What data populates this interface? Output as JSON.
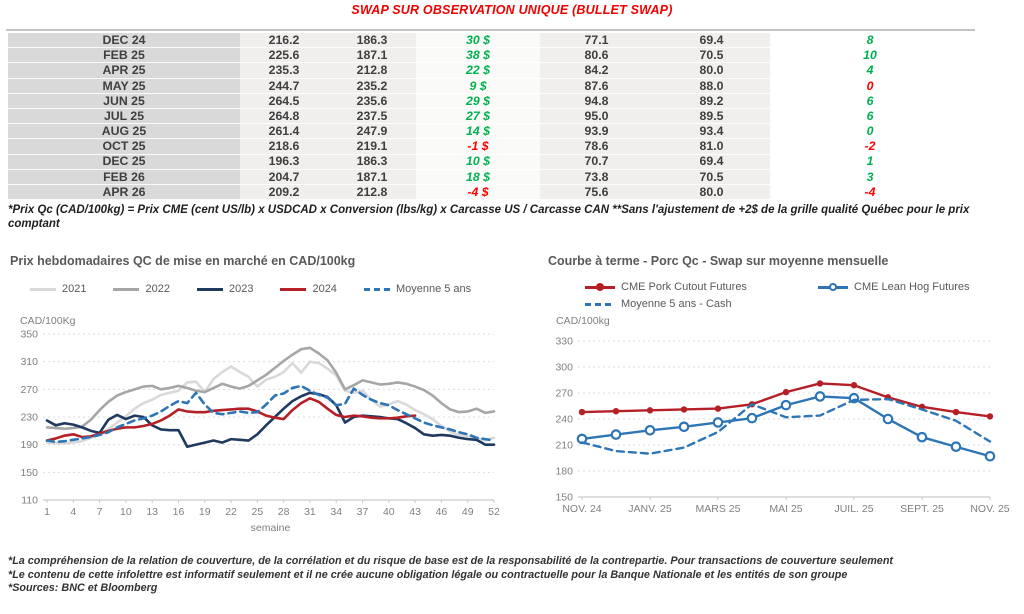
{
  "header": {
    "title": "SWAP SUR OBSERVATION UNIQUE (BULLET SWAP)"
  },
  "colors": {
    "positive": "#00B050",
    "negative": "#FF0000",
    "title_red": "#F00000",
    "label_col_bg": "#D9D9D9",
    "value_col_bg": "#F0EFED"
  },
  "table": {
    "rows": [
      {
        "month": "DEC 24",
        "v1": "216.2",
        "v2": "186.3",
        "diff": "30 $",
        "diff_color": "pos",
        "v3": "77.1",
        "v4": "69.4",
        "delta": "8",
        "delta_color": "pos"
      },
      {
        "month": "FEB 25",
        "v1": "225.6",
        "v2": "187.1",
        "diff": "38 $",
        "diff_color": "pos",
        "v3": "80.6",
        "v4": "70.5",
        "delta": "10",
        "delta_color": "pos"
      },
      {
        "month": "APR 25",
        "v1": "235.3",
        "v2": "212.8",
        "diff": "22 $",
        "diff_color": "pos",
        "v3": "84.2",
        "v4": "80.0",
        "delta": "4",
        "delta_color": "pos"
      },
      {
        "month": "MAY 25",
        "v1": "244.7",
        "v2": "235.2",
        "diff": "9 $",
        "diff_color": "pos",
        "v3": "87.6",
        "v4": "88.0",
        "delta": "0",
        "delta_color": "neg"
      },
      {
        "month": "JUN 25",
        "v1": "264.5",
        "v2": "235.6",
        "diff": "29 $",
        "diff_color": "pos",
        "v3": "94.8",
        "v4": "89.2",
        "delta": "6",
        "delta_color": "pos"
      },
      {
        "month": "JUL 25",
        "v1": "264.8",
        "v2": "237.5",
        "diff": "27 $",
        "diff_color": "pos",
        "v3": "95.0",
        "v4": "89.5",
        "delta": "6",
        "delta_color": "pos"
      },
      {
        "month": "AUG 25",
        "v1": "261.4",
        "v2": "247.9",
        "diff": "14 $",
        "diff_color": "pos",
        "v3": "93.9",
        "v4": "93.4",
        "delta": "0",
        "delta_color": "pos"
      },
      {
        "month": "OCT 25",
        "v1": "218.6",
        "v2": "219.1",
        "diff": "-1 $",
        "diff_color": "neg",
        "v3": "78.6",
        "v4": "81.0",
        "delta": "-2",
        "delta_color": "neg"
      },
      {
        "month": "DEC 25",
        "v1": "196.3",
        "v2": "186.3",
        "diff": "10 $",
        "diff_color": "pos",
        "v3": "70.7",
        "v4": "69.4",
        "delta": "1",
        "delta_color": "pos"
      },
      {
        "month": "FEB 26",
        "v1": "204.7",
        "v2": "187.1",
        "diff": "18 $",
        "diff_color": "pos",
        "v3": "73.8",
        "v4": "70.5",
        "delta": "3",
        "delta_color": "pos"
      },
      {
        "month": "APR 26",
        "v1": "209.2",
        "v2": "212.8",
        "diff": "-4 $",
        "diff_color": "neg",
        "v3": "75.6",
        "v4": "80.0",
        "delta": "-4",
        "delta_color": "neg"
      }
    ]
  },
  "table_footnote": "*Prix Qc (CAD/100kg) = Prix CME (cent US/lb) x USDCAD x Conversion (lbs/kg) x Carcasse US / Carcasse CAN **Sans l'ajustement de +2$ de la grille qualité Québec pour le prix comptant",
  "chart_data": [
    {
      "type": "line",
      "title": "Prix hebdomadaires QC de mise en marché en CAD/100kg",
      "ylabel": "CAD/100Kg",
      "xlabel": "semaine",
      "ylim": [
        110,
        350
      ],
      "yticks": [
        110,
        150,
        190,
        230,
        270,
        310,
        350
      ],
      "xticks": [
        1,
        4,
        7,
        10,
        13,
        16,
        19,
        22,
        25,
        28,
        31,
        34,
        37,
        40,
        43,
        46,
        49,
        52
      ],
      "grid": "horizontal-dashed",
      "legend_position": "top",
      "series": [
        {
          "name": "2021",
          "color": "#D9D9D9",
          "style": "solid",
          "marker": "none",
          "values": [
            193,
            192,
            192,
            193,
            195,
            200,
            206,
            212,
            222,
            231,
            242,
            250,
            255,
            262,
            265,
            268,
            280,
            281,
            266,
            285,
            295,
            303,
            295,
            288,
            274,
            284,
            288,
            295,
            308,
            294,
            310,
            308,
            300,
            290,
            268,
            265,
            268,
            255,
            245,
            248,
            253,
            248,
            240,
            234,
            227,
            217,
            209,
            204,
            202,
            199,
            196,
            200
          ]
        },
        {
          "name": "2022",
          "color": "#A6A6A6",
          "style": "solid",
          "marker": "none",
          "values": [
            215,
            214,
            213,
            214,
            216,
            226,
            240,
            252,
            261,
            266,
            270,
            274,
            275,
            270,
            272,
            275,
            272,
            268,
            266,
            272,
            278,
            274,
            271,
            275,
            283,
            291,
            301,
            311,
            320,
            328,
            330,
            322,
            312,
            294,
            270,
            276,
            283,
            280,
            277,
            278,
            280,
            278,
            274,
            269,
            261,
            250,
            241,
            237,
            238,
            242,
            236,
            238
          ]
        },
        {
          "name": "2023",
          "color": "#1F3A5F",
          "style": "solid",
          "marker": "none",
          "values": [
            225,
            218,
            221,
            219,
            215,
            210,
            207,
            226,
            233,
            227,
            232,
            230,
            218,
            212,
            211,
            211,
            187,
            190,
            193,
            196,
            193,
            198,
            197,
            196,
            205,
            218,
            230,
            242,
            253,
            260,
            265,
            263,
            259,
            247,
            222,
            230,
            232,
            231,
            230,
            228,
            227,
            221,
            214,
            205,
            203,
            204,
            203,
            200,
            198,
            197,
            190,
            190
          ]
        },
        {
          "name": "2024",
          "color": "#B42025",
          "style": "solid",
          "marker": "none",
          "values": [
            196,
            199,
            203,
            205,
            201,
            202,
            206,
            210,
            213,
            215,
            215,
            217,
            220,
            225,
            232,
            241,
            238,
            237,
            237,
            239,
            240,
            241,
            242,
            242,
            238,
            232,
            229,
            227,
            240,
            250,
            257,
            252,
            242,
            233,
            230,
            232,
            231,
            229,
            228,
            228,
            229,
            231,
            232,
            null,
            null,
            null,
            null,
            null,
            null,
            null,
            null,
            null
          ]
        },
        {
          "name": "Moyenne 5 ans",
          "color": "#2E75B6",
          "style": "dashed",
          "marker": "none",
          "values": [
            196,
            194,
            195,
            197,
            199,
            201,
            204,
            208,
            215,
            220,
            225,
            228,
            232,
            238,
            246,
            253,
            250,
            265,
            248,
            236,
            234,
            236,
            238,
            236,
            237,
            248,
            261,
            264,
            272,
            275,
            268,
            262,
            258,
            247,
            249,
            271,
            262,
            255,
            250,
            247,
            240,
            234,
            228,
            222,
            218,
            215,
            212,
            208,
            205,
            200,
            198,
            196
          ]
        }
      ]
    },
    {
      "type": "line",
      "title": "Courbe à terme - Porc Qc - Swap sur moyenne mensuelle",
      "ylabel": "CAD/100kg",
      "xlabel": "",
      "ylim": [
        150,
        330
      ],
      "yticks": [
        150,
        180,
        210,
        240,
        270,
        300,
        330
      ],
      "xtick_labels": [
        "NOV. 24",
        "JANV. 25",
        "MARS 25",
        "MAI 25",
        "JUIL. 25",
        "SEPT. 25",
        "NOV. 25"
      ],
      "n_points": 13,
      "grid": "horizontal-dashed",
      "legend_position": "top",
      "series": [
        {
          "name": "CME Pork Cutout Futures",
          "color": "#B42025",
          "style": "solid",
          "marker": "dot",
          "values": [
            248,
            249,
            250,
            251,
            252,
            257,
            271,
            281,
            279,
            265,
            254,
            248,
            243
          ]
        },
        {
          "name": "CME Lean Hog Futures",
          "color": "#2E75B6",
          "style": "solid",
          "marker": "circle",
          "values": [
            217,
            222,
            227,
            231,
            236,
            241,
            256,
            266,
            264,
            240,
            219,
            208,
            197
          ]
        },
        {
          "name": "Moyenne 5 ans - Cash",
          "color": "#2E75B6",
          "style": "dashed",
          "marker": "none",
          "values": [
            213,
            203,
            200,
            207,
            225,
            257,
            242,
            244,
            262,
            263,
            251,
            238,
            214
          ]
        }
      ]
    }
  ],
  "footer": {
    "lines": [
      "*La compréhension de la relation de couverture, de la corrélation et du risque de base est de la responsabilité de la contrepartie. Pour transactions de couverture seulement",
      "*Le contenu de cette infolettre est informatif seulement et il ne crée aucune obligation légale ou contractuelle pour la Banque Nationale et les entités de son groupe",
      "*Sources: BNC et Bloomberg"
    ]
  }
}
